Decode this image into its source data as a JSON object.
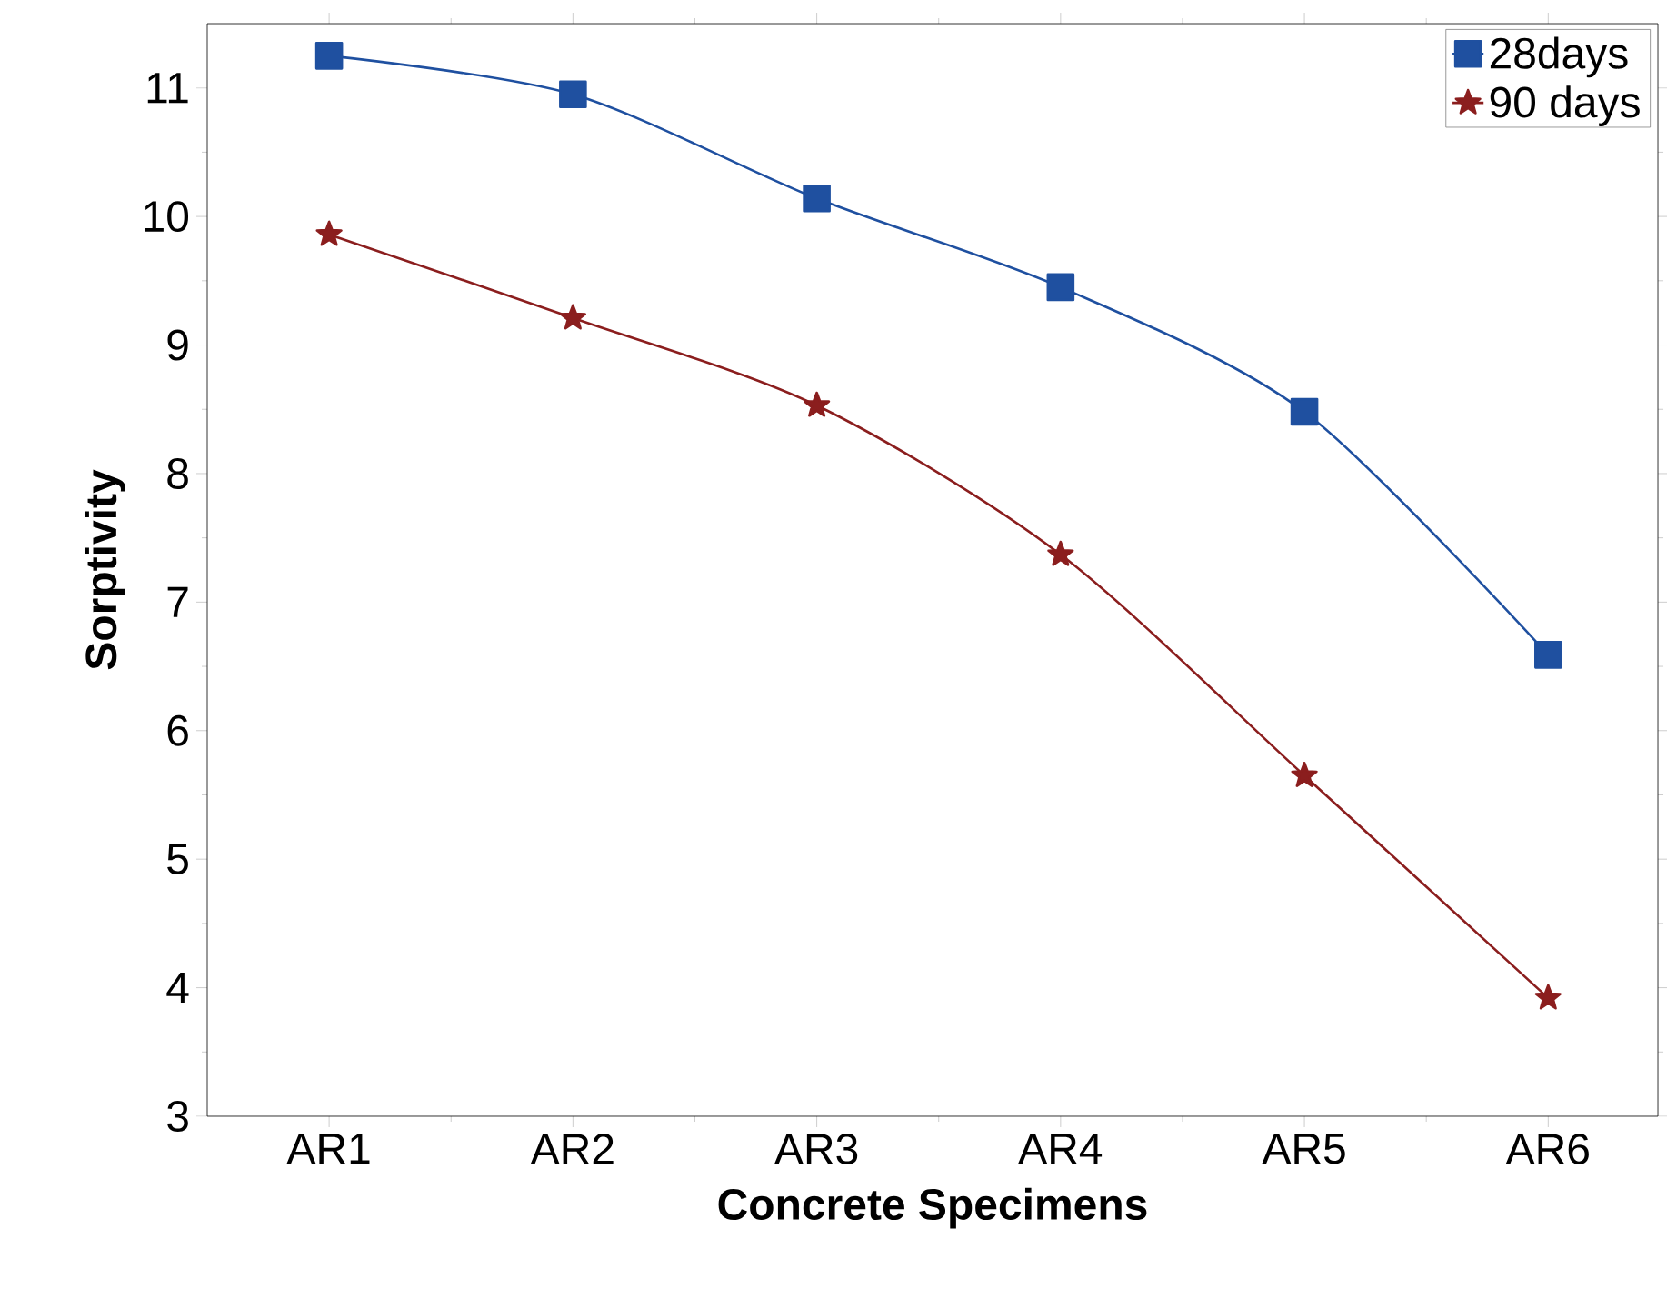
{
  "chart_data": {
    "type": "line",
    "xlabel": "Concrete Specimens",
    "ylabel": "Sorptivity",
    "categories": [
      "AR1",
      "AR2",
      "AR3",
      "AR4",
      "AR5",
      "AR6"
    ],
    "series": [
      {
        "name": "28days",
        "color": "#1f50a0",
        "marker": "square",
        "values": [
          11.25,
          10.95,
          10.14,
          9.45,
          8.48,
          6.59
        ]
      },
      {
        "name": "90 days",
        "color": "#8b1e1e",
        "marker": "star",
        "values": [
          9.86,
          9.21,
          8.53,
          7.37,
          5.65,
          3.92
        ]
      }
    ],
    "ylim": [
      3,
      11.5
    ],
    "yticks": [
      3,
      4,
      5,
      6,
      7,
      8,
      9,
      10,
      11
    ],
    "grid": false,
    "legend": "top right",
    "line_style": "solid"
  }
}
